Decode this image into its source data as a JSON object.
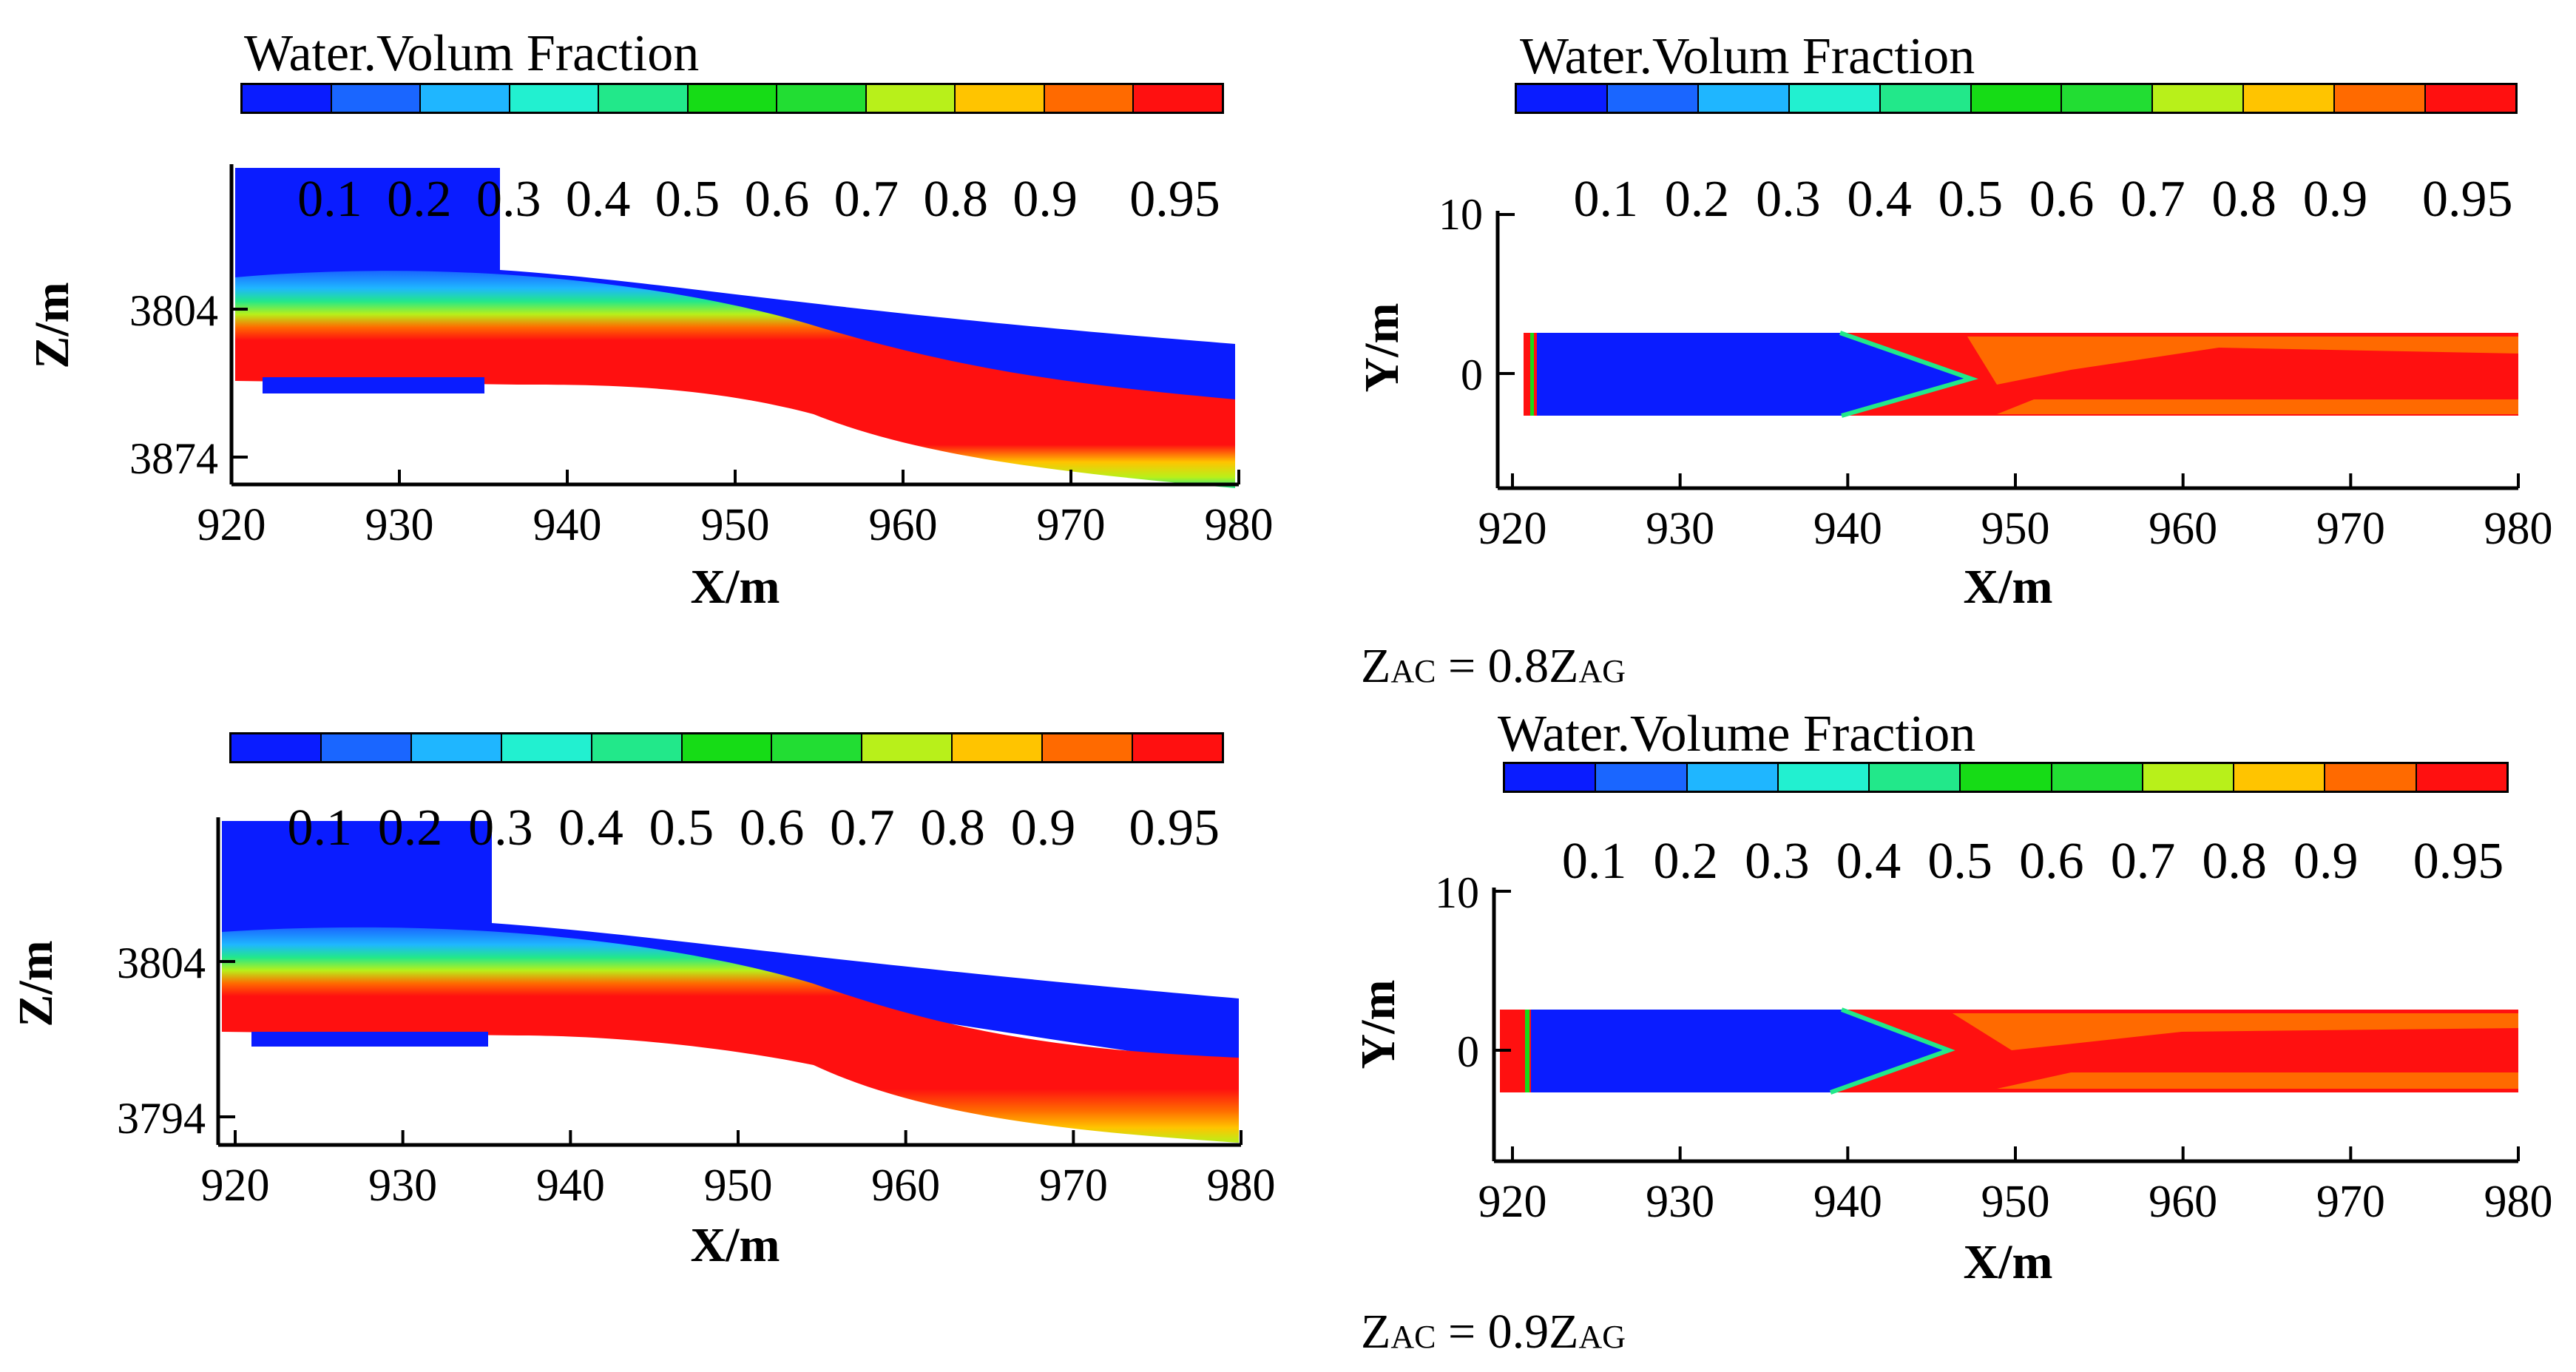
{
  "colorbar": {
    "colors": [
      "#0a1cff",
      "#1a66ff",
      "#1fb6ff",
      "#22f0d0",
      "#22e88a",
      "#16dc16",
      "#22dd33",
      "#b8f01a",
      "#ffc400",
      "#ff6a00",
      "#ff1010"
    ],
    "ticks": [
      "0.1",
      "0.2",
      "0.3",
      "0.4",
      "0.5",
      "0.6",
      "0.7",
      "0.8",
      "0.9",
      "0.95"
    ]
  },
  "chart_data": [
    {
      "type": "heatmap",
      "panel": "side-view-upper",
      "legend_title": "Water.Volum Fraction",
      "xlabel": "X/m",
      "ylabel": "Z/m",
      "x_ticks": [
        "920",
        "930",
        "940",
        "950",
        "960",
        "970",
        "980"
      ],
      "y_ticks": [
        "3804",
        "3874"
      ],
      "xlim": [
        920,
        980
      ],
      "value_range": [
        0.1,
        0.95
      ],
      "description_fields": {
        "variable": "water volume fraction"
      }
    },
    {
      "type": "heatmap",
      "panel": "plan-view-upper",
      "legend_title": "Water.Volum Fraction",
      "xlabel": "X/m",
      "ylabel": "Y/m",
      "x_ticks": [
        "920",
        "930",
        "940",
        "950",
        "960",
        "970",
        "980"
      ],
      "y_ticks": [
        "10",
        "0"
      ],
      "xlim": [
        920,
        980
      ],
      "value_range": [
        0.1,
        0.95
      ]
    },
    {
      "type": "heatmap",
      "panel": "side-view-lower",
      "legend_title": "",
      "xlabel": "X/m",
      "ylabel": "Z/m",
      "x_ticks": [
        "920",
        "930",
        "940",
        "950",
        "960",
        "970",
        "980"
      ],
      "y_ticks": [
        "3804",
        "3794"
      ],
      "xlim": [
        920,
        980
      ],
      "value_range": [
        0.1,
        0.95
      ]
    },
    {
      "type": "heatmap",
      "panel": "plan-view-lower",
      "legend_title": "Water.Volume Fraction",
      "xlabel": "X/m",
      "ylabel": "Y/m",
      "x_ticks": [
        "920",
        "930",
        "940",
        "950",
        "960",
        "970",
        "980"
      ],
      "y_ticks": [
        "10",
        "0"
      ],
      "xlim": [
        920,
        980
      ],
      "value_range": [
        0.1,
        0.95
      ]
    }
  ],
  "captions": {
    "upper": {
      "z1": "Z",
      "s1": "AC",
      "eq": " = 0.8Z",
      "s2": "AG"
    },
    "lower": {
      "z1": "Z",
      "s1": "AC",
      "eq": " = 0.9Z",
      "s2": "AG"
    }
  }
}
